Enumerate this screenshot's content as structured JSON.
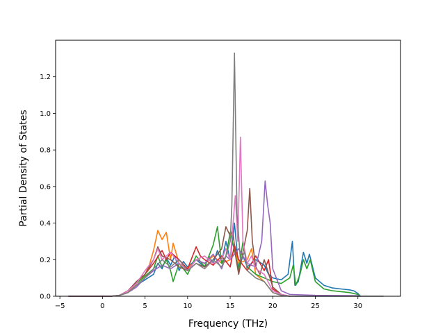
{
  "chart_data": {
    "type": "line",
    "xlabel": "Frequency (THz)",
    "ylabel": "Partial Density of States",
    "xlim": [
      -5.5,
      35
    ],
    "ylim": [
      0.0,
      1.4
    ],
    "xticks": [
      -5,
      0,
      5,
      10,
      15,
      20,
      25,
      30
    ],
    "yticks": [
      0.0,
      0.2,
      0.4,
      0.6,
      0.8,
      1.0,
      1.2
    ],
    "grid": false,
    "legend": "none",
    "series": [
      {
        "color": "#1f77b4",
        "points": [
          [
            -4,
            0
          ],
          [
            1,
            0
          ],
          [
            2,
            0.005
          ],
          [
            3,
            0.02
          ],
          [
            4,
            0.06
          ],
          [
            5,
            0.09
          ],
          [
            6,
            0.12
          ],
          [
            6.5,
            0.18
          ],
          [
            7,
            0.15
          ],
          [
            7.5,
            0.21
          ],
          [
            8,
            0.17
          ],
          [
            8.5,
            0.22
          ],
          [
            9,
            0.14
          ],
          [
            9.5,
            0.19
          ],
          [
            10,
            0.16
          ],
          [
            11,
            0.2
          ],
          [
            12,
            0.16
          ],
          [
            12.5,
            0.22
          ],
          [
            13,
            0.18
          ],
          [
            13.5,
            0.25
          ],
          [
            14,
            0.19
          ],
          [
            14.5,
            0.3
          ],
          [
            15,
            0.2
          ],
          [
            15.5,
            0.4
          ],
          [
            16,
            0.15
          ],
          [
            16.5,
            0.22
          ],
          [
            17,
            0.16
          ],
          [
            18,
            0.2
          ],
          [
            19,
            0.17
          ],
          [
            19.5,
            0.12
          ],
          [
            20,
            0.1
          ],
          [
            21,
            0.09
          ],
          [
            21.8,
            0.12
          ],
          [
            22.3,
            0.3
          ],
          [
            22.6,
            0.06
          ],
          [
            23,
            0.08
          ],
          [
            23.6,
            0.24
          ],
          [
            24,
            0.18
          ],
          [
            24.3,
            0.23
          ],
          [
            25,
            0.1
          ],
          [
            26,
            0.06
          ],
          [
            27,
            0.045
          ],
          [
            28,
            0.04
          ],
          [
            29,
            0.035
          ],
          [
            29.5,
            0.03
          ],
          [
            30,
            0.015
          ],
          [
            30.3,
            0
          ]
        ]
      },
      {
        "color": "#ff7f0e",
        "points": [
          [
            -4,
            0
          ],
          [
            1,
            0
          ],
          [
            2,
            0.005
          ],
          [
            3,
            0.02
          ],
          [
            4,
            0.07
          ],
          [
            5,
            0.12
          ],
          [
            5.5,
            0.17
          ],
          [
            6,
            0.25
          ],
          [
            6.5,
            0.36
          ],
          [
            7,
            0.31
          ],
          [
            7.5,
            0.35
          ],
          [
            8,
            0.2
          ],
          [
            8.3,
            0.29
          ],
          [
            9,
            0.18
          ],
          [
            10,
            0.15
          ],
          [
            11,
            0.2
          ],
          [
            12,
            0.18
          ],
          [
            13,
            0.22
          ],
          [
            14,
            0.18
          ],
          [
            15,
            0.2
          ],
          [
            15.5,
            0.26
          ],
          [
            16,
            0.18
          ],
          [
            17,
            0.2
          ],
          [
            17.5,
            0.26
          ],
          [
            18,
            0.12
          ],
          [
            19,
            0.08
          ],
          [
            20,
            0.02
          ],
          [
            21,
            0.005
          ],
          [
            22,
            0
          ]
        ]
      },
      {
        "color": "#2ca02c",
        "points": [
          [
            -4,
            0
          ],
          [
            1,
            0
          ],
          [
            2,
            0.005
          ],
          [
            3,
            0.03
          ],
          [
            4,
            0.07
          ],
          [
            5,
            0.11
          ],
          [
            6,
            0.15
          ],
          [
            6.5,
            0.22
          ],
          [
            7,
            0.16
          ],
          [
            7.5,
            0.2
          ],
          [
            8,
            0.14
          ],
          [
            8.3,
            0.08
          ],
          [
            9,
            0.18
          ],
          [
            10,
            0.12
          ],
          [
            11,
            0.22
          ],
          [
            12,
            0.16
          ],
          [
            13,
            0.28
          ],
          [
            13.5,
            0.38
          ],
          [
            14,
            0.18
          ],
          [
            14.5,
            0.22
          ],
          [
            15,
            0.35
          ],
          [
            15.5,
            0.25
          ],
          [
            16,
            0.14
          ],
          [
            16.5,
            0.3
          ],
          [
            17,
            0.16
          ],
          [
            18,
            0.12
          ],
          [
            19,
            0.1
          ],
          [
            20,
            0.08
          ],
          [
            21,
            0.07
          ],
          [
            22,
            0.1
          ],
          [
            22.4,
            0.17
          ],
          [
            22.7,
            0.06
          ],
          [
            23.2,
            0.12
          ],
          [
            23.6,
            0.2
          ],
          [
            24,
            0.15
          ],
          [
            24.4,
            0.2
          ],
          [
            25,
            0.08
          ],
          [
            26,
            0.04
          ],
          [
            27,
            0.03
          ],
          [
            28,
            0.025
          ],
          [
            29,
            0.02
          ],
          [
            30,
            0.01
          ],
          [
            30.3,
            0
          ]
        ]
      },
      {
        "color": "#d62728",
        "points": [
          [
            -4,
            0
          ],
          [
            1,
            0
          ],
          [
            2,
            0.005
          ],
          [
            3,
            0.03
          ],
          [
            4,
            0.08
          ],
          [
            5,
            0.12
          ],
          [
            6,
            0.18
          ],
          [
            7,
            0.25
          ],
          [
            7.5,
            0.2
          ],
          [
            8,
            0.24
          ],
          [
            9,
            0.2
          ],
          [
            10,
            0.15
          ],
          [
            11,
            0.27
          ],
          [
            11.5,
            0.22
          ],
          [
            12,
            0.2
          ],
          [
            13,
            0.17
          ],
          [
            14,
            0.22
          ],
          [
            15,
            0.16
          ],
          [
            15.5,
            0.28
          ],
          [
            16,
            0.2
          ],
          [
            17,
            0.14
          ],
          [
            18,
            0.22
          ],
          [
            19,
            0.14
          ],
          [
            19.5,
            0.2
          ],
          [
            20,
            0.04
          ],
          [
            21,
            0.01
          ],
          [
            22,
            0
          ]
        ]
      },
      {
        "color": "#9467bd",
        "points": [
          [
            -4,
            0
          ],
          [
            1,
            0
          ],
          [
            2,
            0.005
          ],
          [
            3,
            0.02
          ],
          [
            4,
            0.05
          ],
          [
            5,
            0.1
          ],
          [
            6,
            0.14
          ],
          [
            7,
            0.17
          ],
          [
            8,
            0.15
          ],
          [
            9,
            0.18
          ],
          [
            10,
            0.14
          ],
          [
            11,
            0.2
          ],
          [
            12,
            0.18
          ],
          [
            13,
            0.23
          ],
          [
            14,
            0.15
          ],
          [
            14.5,
            0.22
          ],
          [
            15,
            0.2
          ],
          [
            16,
            0.26
          ],
          [
            17,
            0.18
          ],
          [
            18,
            0.16
          ],
          [
            18.7,
            0.3
          ],
          [
            19.1,
            0.63
          ],
          [
            19.4,
            0.5
          ],
          [
            19.7,
            0.4
          ],
          [
            20,
            0.15
          ],
          [
            21,
            0.03
          ],
          [
            22,
            0.01
          ],
          [
            25,
            0.005
          ],
          [
            30,
            0.003
          ],
          [
            30.3,
            0
          ]
        ]
      },
      {
        "color": "#8c564b",
        "points": [
          [
            -4,
            0
          ],
          [
            1,
            0
          ],
          [
            2,
            0.005
          ],
          [
            3,
            0.03
          ],
          [
            4,
            0.08
          ],
          [
            5,
            0.12
          ],
          [
            6,
            0.2
          ],
          [
            6.5,
            0.27
          ],
          [
            7,
            0.22
          ],
          [
            8,
            0.2
          ],
          [
            9,
            0.16
          ],
          [
            10,
            0.14
          ],
          [
            11,
            0.18
          ],
          [
            12,
            0.16
          ],
          [
            13,
            0.2
          ],
          [
            14,
            0.26
          ],
          [
            14.5,
            0.38
          ],
          [
            15,
            0.33
          ],
          [
            15.3,
            0.36
          ],
          [
            15.7,
            0.2
          ],
          [
            16,
            0.12
          ],
          [
            16.5,
            0.24
          ],
          [
            17,
            0.36
          ],
          [
            17.3,
            0.59
          ],
          [
            17.6,
            0.3
          ],
          [
            18,
            0.16
          ],
          [
            18.5,
            0.12
          ],
          [
            19,
            0.2
          ],
          [
            20,
            0.05
          ],
          [
            21,
            0.01
          ],
          [
            22,
            0
          ]
        ]
      },
      {
        "color": "#e377c2",
        "points": [
          [
            -4,
            0
          ],
          [
            1,
            0
          ],
          [
            2,
            0.005
          ],
          [
            3,
            0.03
          ],
          [
            4,
            0.07
          ],
          [
            5,
            0.14
          ],
          [
            6,
            0.2
          ],
          [
            6.5,
            0.26
          ],
          [
            7,
            0.2
          ],
          [
            8,
            0.24
          ],
          [
            9,
            0.18
          ],
          [
            10,
            0.14
          ],
          [
            11,
            0.2
          ],
          [
            12,
            0.22
          ],
          [
            13,
            0.18
          ],
          [
            14,
            0.2
          ],
          [
            14.5,
            0.26
          ],
          [
            15,
            0.2
          ],
          [
            15.6,
            0.55
          ],
          [
            15.9,
            0.3
          ],
          [
            16.2,
            0.87
          ],
          [
            16.5,
            0.3
          ],
          [
            17,
            0.18
          ],
          [
            17.5,
            0.22
          ],
          [
            18,
            0.15
          ],
          [
            19,
            0.12
          ],
          [
            20,
            0.03
          ],
          [
            21,
            0.01
          ],
          [
            22,
            0
          ]
        ]
      },
      {
        "color": "#7f7f7f",
        "points": [
          [
            -4,
            0
          ],
          [
            1,
            0
          ],
          [
            2,
            0.005
          ],
          [
            3,
            0.02
          ],
          [
            4,
            0.06
          ],
          [
            5,
            0.1
          ],
          [
            6,
            0.15
          ],
          [
            7,
            0.2
          ],
          [
            8,
            0.16
          ],
          [
            9,
            0.2
          ],
          [
            10,
            0.14
          ],
          [
            11,
            0.18
          ],
          [
            12,
            0.15
          ],
          [
            13,
            0.2
          ],
          [
            14,
            0.16
          ],
          [
            14.5,
            0.22
          ],
          [
            15,
            0.3
          ],
          [
            15.2,
            0.5
          ],
          [
            15.5,
            1.33
          ],
          [
            15.8,
            0.45
          ],
          [
            16.2,
            0.2
          ],
          [
            16.7,
            0.24
          ],
          [
            17,
            0.14
          ],
          [
            18,
            0.1
          ],
          [
            19,
            0.08
          ],
          [
            20,
            0.02
          ],
          [
            21,
            0.005
          ],
          [
            22,
            0
          ],
          [
            33,
            0
          ]
        ]
      }
    ]
  }
}
